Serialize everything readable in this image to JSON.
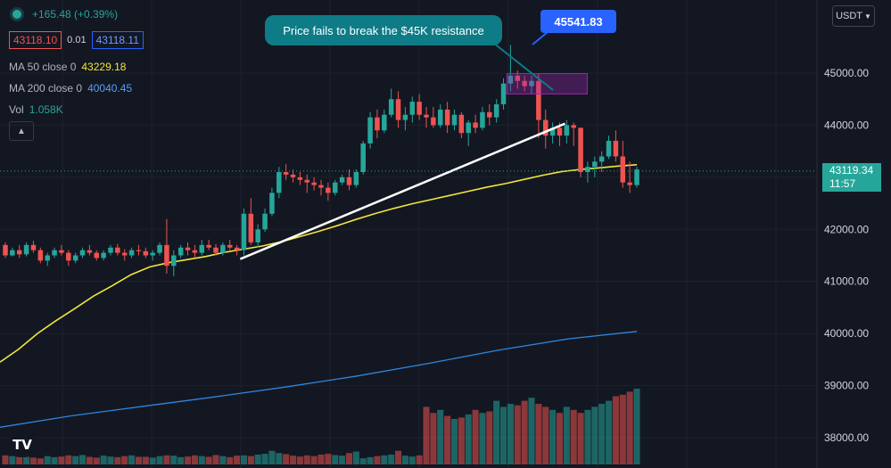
{
  "legend": {
    "change": "+165.48 (+0.39%)",
    "sell_price": "43118.10",
    "spread": "0.01",
    "buy_price": "43118.11",
    "ma50_label": "MA 50 close 0",
    "ma50_value": "43229.18",
    "ma200_label": "MA 200 close 0",
    "ma200_value": "40040.45",
    "vol_label": "Vol",
    "vol_value": "1.058K"
  },
  "annotations": {
    "callout": "Price fails to break the $45K resistance",
    "high_label": "45541.83"
  },
  "price_scale": {
    "currency": "USDT",
    "last_price": "43119.34",
    "countdown": "11:57"
  },
  "colors": {
    "up": "#26a69a",
    "down": "#ef5350",
    "ma50": "#f2e63b",
    "ma200": "#2e86de",
    "background": "#131722"
  },
  "chart_data": {
    "type": "candlestick",
    "ylim": [
      37600,
      45700
    ],
    "y_ticks": [
      38000,
      39000,
      40000,
      41000,
      42000,
      43000,
      44000,
      45000
    ],
    "y_tick_labels": [
      "38000.00",
      "39000.00",
      "40000.00",
      "41000.00",
      "42000.00",
      "43000.00",
      "44000.00",
      "45000.00"
    ],
    "grid": true,
    "ohlc": [
      [
        41700,
        41750,
        41450,
        41500
      ],
      [
        41500,
        41650,
        41480,
        41600
      ],
      [
        41600,
        41700,
        41450,
        41520
      ],
      [
        41520,
        41750,
        41480,
        41700
      ],
      [
        41700,
        41780,
        41550,
        41600
      ],
      [
        41600,
        41650,
        41350,
        41400
      ],
      [
        41400,
        41550,
        41300,
        41500
      ],
      [
        41500,
        41650,
        41450,
        41600
      ],
      [
        41600,
        41700,
        41500,
        41550
      ],
      [
        41550,
        41600,
        41300,
        41400
      ],
      [
        41400,
        41550,
        41350,
        41500
      ],
      [
        41500,
        41650,
        41450,
        41600
      ],
      [
        41600,
        41700,
        41500,
        41550
      ],
      [
        41550,
        41600,
        41400,
        41450
      ],
      [
        41450,
        41600,
        41400,
        41550
      ],
      [
        41550,
        41700,
        41500,
        41650
      ],
      [
        41650,
        41720,
        41500,
        41550
      ],
      [
        41550,
        41620,
        41400,
        41500
      ],
      [
        41500,
        41650,
        41450,
        41600
      ],
      [
        41600,
        41700,
        41500,
        41580
      ],
      [
        41580,
        41650,
        41450,
        41500
      ],
      [
        41500,
        41600,
        41400,
        41550
      ],
      [
        41550,
        41750,
        41500,
        41700
      ],
      [
        41700,
        42200,
        41150,
        41300
      ],
      [
        41300,
        41600,
        41100,
        41500
      ],
      [
        41500,
        41700,
        41450,
        41650
      ],
      [
        41650,
        41750,
        41500,
        41600
      ],
      [
        41600,
        41700,
        41450,
        41550
      ],
      [
        41550,
        41800,
        41500,
        41700
      ],
      [
        41700,
        41800,
        41600,
        41650
      ],
      [
        41650,
        41720,
        41500,
        41550
      ],
      [
        41550,
        41750,
        41500,
        41700
      ],
      [
        41700,
        41800,
        41600,
        41650
      ],
      [
        41650,
        41700,
        41500,
        41600
      ],
      [
        41600,
        42400,
        41500,
        42300
      ],
      [
        42300,
        42600,
        41700,
        41750
      ],
      [
        41750,
        42100,
        41650,
        42000
      ],
      [
        42000,
        42400,
        41950,
        42300
      ],
      [
        42300,
        42800,
        42250,
        42700
      ],
      [
        42700,
        43200,
        42600,
        43100
      ],
      [
        43100,
        43250,
        42950,
        43050
      ],
      [
        43050,
        43150,
        42900,
        43000
      ],
      [
        43000,
        43100,
        42850,
        42950
      ],
      [
        42950,
        43050,
        42700,
        42900
      ],
      [
        42900,
        43000,
        42750,
        42850
      ],
      [
        42850,
        42950,
        42650,
        42800
      ],
      [
        42800,
        42900,
        42550,
        42700
      ],
      [
        42700,
        42950,
        42650,
        42900
      ],
      [
        42900,
        43050,
        42850,
        43000
      ],
      [
        43000,
        43150,
        42750,
        42850
      ],
      [
        42850,
        43150,
        42800,
        43100
      ],
      [
        43100,
        43700,
        43050,
        43650
      ],
      [
        43650,
        44250,
        43550,
        44150
      ],
      [
        44150,
        44300,
        43750,
        43900
      ],
      [
        43900,
        44300,
        43850,
        44200
      ],
      [
        44200,
        44700,
        44150,
        44500
      ],
      [
        44500,
        44650,
        43950,
        44100
      ],
      [
        44100,
        44350,
        43900,
        44200
      ],
      [
        44200,
        44550,
        44050,
        44450
      ],
      [
        44450,
        44600,
        44100,
        44200
      ],
      [
        44200,
        44350,
        43950,
        44150
      ],
      [
        44150,
        44350,
        43950,
        44000
      ],
      [
        44000,
        44400,
        43950,
        44300
      ],
      [
        44300,
        44450,
        43850,
        44000
      ],
      [
        44000,
        44300,
        43900,
        44200
      ],
      [
        44200,
        44250,
        43750,
        43850
      ],
      [
        43850,
        44100,
        43600,
        44050
      ],
      [
        44050,
        44200,
        43850,
        43950
      ],
      [
        43950,
        44350,
        43900,
        44250
      ],
      [
        44250,
        44400,
        44000,
        44150
      ],
      [
        44150,
        44500,
        44050,
        44400
      ],
      [
        44400,
        44900,
        44300,
        44800
      ],
      [
        44800,
        45540,
        44650,
        44950
      ],
      [
        44950,
        45050,
        44700,
        44850
      ],
      [
        44850,
        44950,
        44650,
        44750
      ],
      [
        44750,
        44950,
        44600,
        44850
      ],
      [
        44850,
        45000,
        43750,
        44100
      ],
      [
        44100,
        44300,
        43550,
        43800
      ],
      [
        43800,
        44050,
        43650,
        43950
      ],
      [
        43950,
        44050,
        43600,
        43800
      ],
      [
        43800,
        44100,
        43650,
        44000
      ],
      [
        44000,
        44050,
        43600,
        43950
      ],
      [
        43950,
        43950,
        43000,
        43100
      ],
      [
        43100,
        43300,
        42900,
        43200
      ],
      [
        43200,
        43400,
        43000,
        43300
      ],
      [
        43300,
        43500,
        43100,
        43400
      ],
      [
        43400,
        43800,
        43350,
        43700
      ],
      [
        43700,
        43900,
        43300,
        43400
      ],
      [
        43400,
        43700,
        42800,
        42900
      ],
      [
        42900,
        43300,
        42700,
        42850
      ],
      [
        42850,
        43200,
        42800,
        43150
      ]
    ],
    "ma50": [
      [
        0,
        39450
      ],
      [
        5,
        39700
      ],
      [
        10,
        40000
      ],
      [
        15,
        40250
      ],
      [
        20,
        40480
      ],
      [
        25,
        40720
      ],
      [
        30,
        40920
      ],
      [
        35,
        41130
      ],
      [
        40,
        41280
      ],
      [
        45,
        41360
      ],
      [
        50,
        41420
      ],
      [
        55,
        41480
      ],
      [
        60,
        41560
      ],
      [
        65,
        41620
      ],
      [
        70,
        41680
      ],
      [
        75,
        41760
      ],
      [
        80,
        41860
      ],
      [
        85,
        41960
      ],
      [
        90,
        42070
      ],
      [
        95,
        42190
      ],
      [
        100,
        42300
      ],
      [
        105,
        42400
      ],
      [
        110,
        42490
      ],
      [
        115,
        42570
      ],
      [
        120,
        42650
      ],
      [
        125,
        42730
      ],
      [
        130,
        42810
      ],
      [
        135,
        42880
      ],
      [
        140,
        42960
      ],
      [
        145,
        43040
      ],
      [
        150,
        43110
      ],
      [
        155,
        43150
      ],
      [
        160,
        43180
      ],
      [
        165,
        43215
      ],
      [
        170,
        43240
      ]
    ],
    "ma200": [
      [
        0,
        38200
      ],
      [
        40,
        38420
      ],
      [
        80,
        38600
      ],
      [
        120,
        38780
      ],
      [
        160,
        38970
      ],
      [
        200,
        39180
      ],
      [
        240,
        39420
      ],
      [
        280,
        39680
      ],
      [
        320,
        39900
      ],
      [
        358,
        40040
      ]
    ],
    "ma200_x_max": 358,
    "volume": [
      60,
      55,
      70,
      50,
      45,
      40,
      55,
      48,
      52,
      60,
      55,
      62,
      50,
      45,
      58,
      52,
      48,
      55,
      60,
      50,
      50,
      45,
      55,
      60,
      58,
      48,
      52,
      60,
      55,
      50,
      62,
      55,
      48,
      58,
      60,
      55,
      65,
      70,
      90,
      75,
      68,
      58,
      52,
      60,
      55,
      65,
      70,
      62,
      58,
      75,
      85,
      40,
      48,
      55,
      60,
      65,
      90,
      58,
      52,
      60,
      380,
      340,
      360,
      320,
      300,
      310,
      330,
      360,
      340,
      350,
      420,
      380,
      400,
      390,
      420,
      440,
      400,
      380,
      360,
      340,
      380,
      360,
      340,
      360,
      380,
      400,
      420,
      450,
      460,
      480,
      500,
      560,
      520,
      540,
      580,
      620,
      640,
      600,
      680,
      720,
      700
    ],
    "volume_axis_max": 1000
  }
}
